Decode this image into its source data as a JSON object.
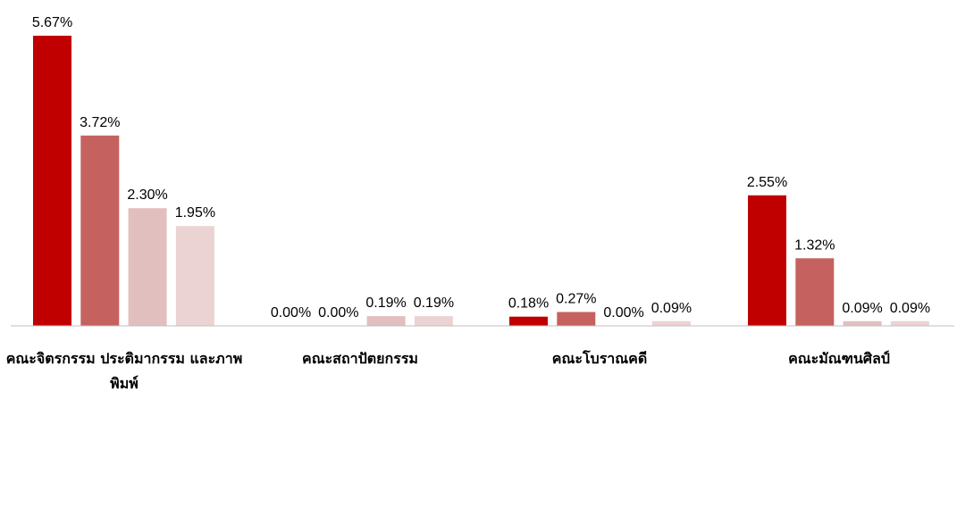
{
  "chart_data": {
    "type": "bar",
    "categories": [
      "คณะจิตรกรรม ประติมากรรม และภาพพิมพ์",
      "คณะสถาปัตยกรรม",
      "คณะโบราณคดี",
      "คณะมัณฑนศิลป์"
    ],
    "series": [
      {
        "values": [
          5.67,
          0.0,
          0.18,
          2.55
        ],
        "labels": [
          "5.67%",
          "0.00%",
          "0.18%",
          "2.55%"
        ],
        "color": "#c00000"
      },
      {
        "values": [
          3.72,
          0.0,
          0.27,
          1.32
        ],
        "labels": [
          "3.72%",
          "0.00%",
          "0.27%",
          "1.32%"
        ],
        "color": "#c5625f"
      },
      {
        "values": [
          2.3,
          0.19,
          0.0,
          0.09
        ],
        "labels": [
          "2.30%",
          "0.19%",
          "0.00%",
          "0.09%"
        ],
        "color": "#e2bfbf"
      },
      {
        "values": [
          1.95,
          0.19,
          0.09,
          0.09
        ],
        "labels": [
          "1.95%",
          "0.19%",
          "0.09%",
          "0.09%"
        ],
        "color": "#ecd3d3"
      }
    ],
    "unit": "%",
    "ylim": [
      0,
      5.67
    ],
    "grid": false,
    "legend": "none"
  }
}
